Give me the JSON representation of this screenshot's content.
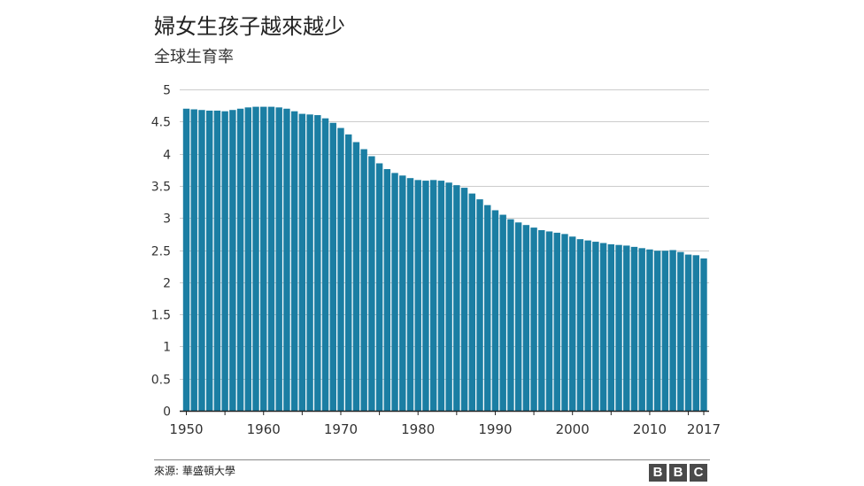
{
  "title": "婦女生孩子越來越少",
  "subtitle": "全球生育率",
  "source": "來源: 華盛頓大學",
  "logo": [
    "B",
    "B",
    "C"
  ],
  "colors": {
    "bar": "#1b7ea3",
    "grid": "#cccccc",
    "axis": "#222222"
  },
  "chart_data": {
    "type": "bar",
    "title": "婦女生孩子越來越少",
    "subtitle": "全球生育率",
    "xlabel": "",
    "ylabel": "",
    "ylim": [
      0,
      5
    ],
    "y_ticks": [
      0,
      0.5,
      1,
      1.5,
      2,
      2.5,
      3,
      3.5,
      4,
      4.5,
      5
    ],
    "y_tick_labels": [
      "0",
      "0.5",
      "1",
      "1.5",
      "2",
      "2.5",
      "3",
      "3.5",
      "4",
      "4.5",
      "5"
    ],
    "x_tick_labels": [
      {
        "year": 1950,
        "label": "1950"
      },
      {
        "year": 1960,
        "label": "1960"
      },
      {
        "year": 1970,
        "label": "1970"
      },
      {
        "year": 1980,
        "label": "1980"
      },
      {
        "year": 1990,
        "label": "1990"
      },
      {
        "year": 2000,
        "label": "2000"
      },
      {
        "year": 2010,
        "label": "2010"
      },
      {
        "year": 2017,
        "label": "2017"
      }
    ],
    "grid": true,
    "categories": [
      1950,
      1951,
      1952,
      1953,
      1954,
      1955,
      1956,
      1957,
      1958,
      1959,
      1960,
      1961,
      1962,
      1963,
      1964,
      1965,
      1966,
      1967,
      1968,
      1969,
      1970,
      1971,
      1972,
      1973,
      1974,
      1975,
      1976,
      1977,
      1978,
      1979,
      1980,
      1981,
      1982,
      1983,
      1984,
      1985,
      1986,
      1987,
      1988,
      1989,
      1990,
      1991,
      1992,
      1993,
      1994,
      1995,
      1996,
      1997,
      1998,
      1999,
      2000,
      2001,
      2002,
      2003,
      2004,
      2005,
      2006,
      2007,
      2008,
      2009,
      2010,
      2011,
      2012,
      2013,
      2014,
      2015,
      2016,
      2017
    ],
    "values": [
      4.7,
      4.69,
      4.68,
      4.67,
      4.67,
      4.66,
      4.68,
      4.7,
      4.72,
      4.73,
      4.73,
      4.73,
      4.72,
      4.7,
      4.66,
      4.62,
      4.61,
      4.6,
      4.55,
      4.48,
      4.4,
      4.3,
      4.18,
      4.07,
      3.96,
      3.85,
      3.76,
      3.7,
      3.66,
      3.62,
      3.59,
      3.58,
      3.59,
      3.58,
      3.55,
      3.51,
      3.47,
      3.38,
      3.29,
      3.2,
      3.12,
      3.05,
      2.98,
      2.93,
      2.89,
      2.85,
      2.81,
      2.79,
      2.77,
      2.75,
      2.71,
      2.67,
      2.65,
      2.63,
      2.61,
      2.59,
      2.58,
      2.57,
      2.55,
      2.53,
      2.51,
      2.49,
      2.49,
      2.5,
      2.47,
      2.43,
      2.42,
      2.37
    ]
  }
}
